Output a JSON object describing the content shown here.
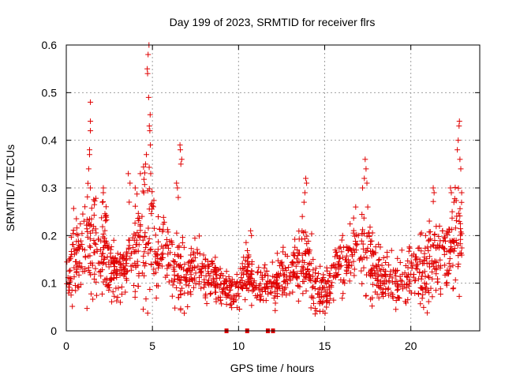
{
  "chart_data": {
    "type": "scatter",
    "title": "Day 199 of 2023, SRMTID for receiver flrs",
    "xlabel": "GPS time / hours",
    "ylabel": "SRMTID / TECUs",
    "xlim": [
      0,
      24
    ],
    "ylim": [
      0,
      0.6
    ],
    "x_ticks": [
      0,
      5,
      10,
      15,
      20
    ],
    "y_ticks": [
      0,
      0.1,
      0.2,
      0.3,
      0.4,
      0.5,
      0.6
    ],
    "x_tick_labels": [
      "0",
      "5",
      "10",
      "15",
      "20"
    ],
    "y_tick_labels": [
      "0",
      "0.1",
      "0.2",
      "0.3",
      "0.4",
      "0.5",
      "0.6"
    ],
    "grid": true,
    "marker": "plus",
    "color": "#e00000",
    "series": [
      {
        "name": "SRMTID",
        "profile": [
          [
            0.0,
            0.1,
            0.04
          ],
          [
            0.5,
            0.16,
            0.06
          ],
          [
            1.0,
            0.18,
            0.07
          ],
          [
            1.4,
            0.2,
            0.1
          ],
          [
            2.0,
            0.14,
            0.06
          ],
          [
            2.2,
            0.19,
            0.08
          ],
          [
            2.5,
            0.14,
            0.05
          ],
          [
            3.0,
            0.11,
            0.04
          ],
          [
            3.5,
            0.15,
            0.06
          ],
          [
            4.0,
            0.18,
            0.07
          ],
          [
            4.5,
            0.2,
            0.1
          ],
          [
            4.8,
            0.22,
            0.15
          ],
          [
            5.2,
            0.14,
            0.05
          ],
          [
            5.6,
            0.19,
            0.06
          ],
          [
            6.0,
            0.15,
            0.05
          ],
          [
            6.5,
            0.13,
            0.08
          ],
          [
            7.0,
            0.11,
            0.04
          ],
          [
            7.5,
            0.14,
            0.05
          ],
          [
            8.0,
            0.11,
            0.04
          ],
          [
            8.5,
            0.11,
            0.03
          ],
          [
            9.0,
            0.1,
            0.03
          ],
          [
            9.5,
            0.08,
            0.03
          ],
          [
            10.0,
            0.09,
            0.03
          ],
          [
            10.5,
            0.12,
            0.05
          ],
          [
            11.0,
            0.09,
            0.03
          ],
          [
            11.5,
            0.09,
            0.03
          ],
          [
            12.0,
            0.1,
            0.04
          ],
          [
            12.5,
            0.11,
            0.04
          ],
          [
            13.0,
            0.11,
            0.03
          ],
          [
            13.5,
            0.15,
            0.06
          ],
          [
            14.0,
            0.15,
            0.07
          ],
          [
            14.5,
            0.09,
            0.04
          ],
          [
            15.0,
            0.08,
            0.03
          ],
          [
            15.5,
            0.11,
            0.04
          ],
          [
            16.0,
            0.13,
            0.05
          ],
          [
            16.5,
            0.15,
            0.05
          ],
          [
            17.0,
            0.19,
            0.06
          ],
          [
            17.5,
            0.16,
            0.06
          ],
          [
            18.0,
            0.12,
            0.04
          ],
          [
            18.5,
            0.11,
            0.04
          ],
          [
            19.0,
            0.11,
            0.04
          ],
          [
            19.5,
            0.11,
            0.04
          ],
          [
            20.0,
            0.12,
            0.04
          ],
          [
            20.5,
            0.13,
            0.05
          ],
          [
            21.0,
            0.14,
            0.06
          ],
          [
            21.5,
            0.16,
            0.07
          ],
          [
            22.0,
            0.15,
            0.06
          ],
          [
            22.5,
            0.17,
            0.07
          ],
          [
            22.9,
            0.2,
            0.09
          ]
        ],
        "peaks": [
          [
            1.4,
            0.48
          ],
          [
            1.4,
            0.44
          ],
          [
            1.4,
            0.42
          ],
          [
            1.35,
            0.38
          ],
          [
            1.35,
            0.37
          ],
          [
            1.3,
            0.34
          ],
          [
            1.4,
            0.3
          ],
          [
            2.15,
            0.3
          ],
          [
            2.15,
            0.29
          ],
          [
            2.1,
            0.27
          ],
          [
            3.6,
            0.33
          ],
          [
            3.7,
            0.31
          ],
          [
            4.0,
            0.3
          ],
          [
            4.3,
            0.33
          ],
          [
            4.5,
            0.29
          ],
          [
            4.6,
            0.35
          ],
          [
            4.65,
            0.37
          ],
          [
            4.7,
            0.55
          ],
          [
            4.72,
            0.54
          ],
          [
            4.75,
            0.58
          ],
          [
            4.78,
            0.49
          ],
          [
            4.8,
            0.6
          ],
          [
            4.82,
            0.43
          ],
          [
            4.85,
            0.42
          ],
          [
            4.88,
            0.39
          ],
          [
            4.9,
            0.33
          ],
          [
            6.4,
            0.31
          ],
          [
            6.45,
            0.3
          ],
          [
            6.5,
            0.28
          ],
          [
            6.6,
            0.39
          ],
          [
            6.62,
            0.38
          ],
          [
            6.65,
            0.35
          ],
          [
            6.7,
            0.36
          ],
          [
            10.7,
            0.21
          ],
          [
            10.75,
            0.2
          ],
          [
            13.9,
            0.32
          ],
          [
            13.95,
            0.31
          ],
          [
            13.85,
            0.29
          ],
          [
            13.8,
            0.27
          ],
          [
            13.7,
            0.24
          ],
          [
            16.8,
            0.26
          ],
          [
            17.2,
            0.3
          ],
          [
            17.3,
            0.32
          ],
          [
            17.35,
            0.36
          ],
          [
            17.4,
            0.34
          ],
          [
            17.45,
            0.31
          ],
          [
            17.5,
            0.26
          ],
          [
            21.3,
            0.3
          ],
          [
            21.35,
            0.29
          ],
          [
            22.3,
            0.3
          ],
          [
            22.35,
            0.29
          ],
          [
            22.4,
            0.25
          ],
          [
            22.5,
            0.27
          ],
          [
            22.7,
            0.38
          ],
          [
            22.75,
            0.4
          ],
          [
            22.8,
            0.43
          ],
          [
            22.82,
            0.44
          ],
          [
            22.85,
            0.36
          ],
          [
            22.9,
            0.34
          ],
          [
            22.95,
            0.29
          ]
        ]
      }
    ],
    "gap_markers_x": [
      9.3,
      10.5,
      11.7,
      12.0
    ]
  }
}
